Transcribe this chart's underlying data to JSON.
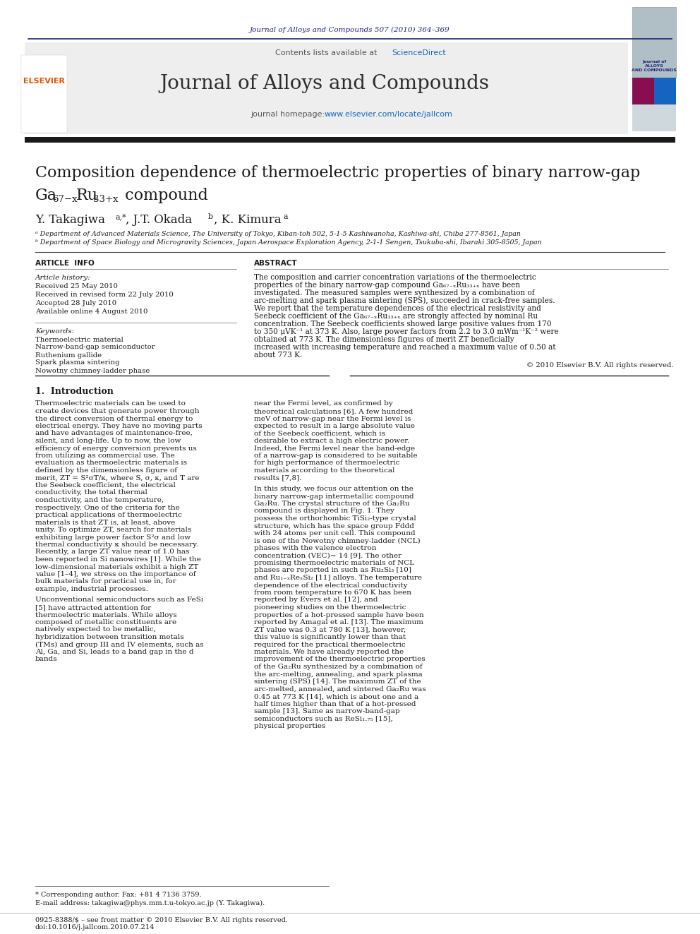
{
  "page_width": 9.92,
  "page_height": 13.23,
  "bg_color": "#ffffff",
  "top_citation": "Journal of Alloys and Compounds 507 (2010) 364–369",
  "top_citation_color": "#1a237e",
  "header_gray": "#eeeeee",
  "header_journal_title": "Journal of Alloys and Compounds",
  "sciencedirect_color": "#1565c0",
  "homepage_color": "#1565c0",
  "elsevier_logo_color": "#e65100",
  "paper_title_line1": "Composition dependence of thermoelectric properties of binary narrow-gap",
  "affil_a": "ᵃ Department of Advanced Materials Science, The University of Tokyo, Kiban-toh 502, 5-1-5 Kashiwanoha, Kashiwa-shi, Chiba 277-8561, Japan",
  "affil_b": "ᵇ Department of Space Biology and Microgravity Sciences, Japan Aerospace Exploration Agency, 2-1-1 Sengen, Tsukuba-shi, Ibaraki 305-8505, Japan",
  "article_history": [
    "Received 25 May 2010",
    "Received in revised form 22 July 2010",
    "Accepted 28 July 2010",
    "Available online 4 August 2010"
  ],
  "keywords": [
    "Thermoelectric material",
    "Narrow-band-gap semiconductor",
    "Ruthenium gallide",
    "Spark plasma sintering",
    "Nowotny chimney-ladder phase"
  ],
  "abstract_text": "The composition and carrier concentration variations of the thermoelectric properties of the binary narrow-gap compound Ga₆₇₋ₓRu₃₃₊ₓ have been investigated. The measured samples were synthesized by a combination of arc-melting and spark plasma sintering (SPS), succeeded in crack-free samples. We report that the temperature dependences of the electrical resistivity and Seebeck coefficient of the Ga₆₇₋ₓRu₃₃₊ₓ are strongly affected by nominal Ru concentration. The Seebeck coefficients showed large positive values from 170 to 350 μVK⁻¹ at 373 K. Also, large power factors from 2.2 to 3.0 mWm⁻¹K⁻² were obtained at 773 K. The dimensionless figures of merit ZT beneficially increased with increasing temperature and reached a maximum value of 0.50 at about 773 K.",
  "copyright": "© 2010 Elsevier B.V. All rights reserved.",
  "intro_col1": "Thermoelectric materials can be used to create devices that generate power through the direct conversion of thermal energy to electrical energy. They have no moving parts and have advantages of maintenance-free, silent, and long-life. Up to now, the low efficiency of energy conversion prevents us from utilizing as commercial use. The evaluation as thermoelectric materials is defined by the dimensionless figure of merit, ZT = S²σT/κ, where S, σ, κ, and T are the Seebeck coefficient, the electrical conductivity, the total thermal conductivity, and the temperature, respectively. One of the criteria for the practical applications of thermoelectric materials is that ZT is, at least, above unity. To optimize ZT, search for materials exhibiting large power factor S²σ and low thermal conductivity κ should be necessary. Recently, a large ZT value near of 1.0 has been reported in Si nanowires [1]. While the low-dimensional materials exhibit a high ZT value [1–4], we stress on the importance of bulk materials for practical use in, for example, industrial processes.",
  "intro_col1_2": "    Unconventional semiconductors such as FeSi [5] have attracted attention for thermoelectric materials. While alloys composed of metallic constituents are natively expected to be metallic, hybridization between transition metals (TMs) and group III and IV elements, such as Al, Ga, and Si, leads to a band gap in the d bands",
  "intro_col2": "near the Fermi level, as confirmed by theoretical calculations [6]. A few hundred meV of narrow-gap near the Fermi level is expected to result in a large absolute value of the Seebeck coefficient, which is desirable to extract a high electric power. Indeed, the Fermi level near the band-edge of a narrow-gap is considered to be suitable for high performance of thermoelectric materials according to the theoretical results [7,8].",
  "intro_col2_2": "    In this study, we focus our attention on the binary narrow-gap intermetallic compound Ga₂Ru. The crystal structure of the Ga₂Ru compound is displayed in Fig. 1. They possess the orthorhombic TiSi₂-type crystal structure, which has the space group Fddd with 24 atoms per unit cell. This compound is one of the Nowotny chimney-ladder (NCL) phases with the valence electron concentration (VEC)~ 14 [9]. The other promising thermoelectric materials of NCL phases are reported in such as Ru₂Si₃ [10] and Ru₁₋ₓReₓSi₂ [11] alloys. The temperature dependence of the electrical conductivity from room temperature to 670 K has been reported by Evers et al. [12], and pioneering studies on the thermoelectric properties of a hot-pressed sample have been reported by Amagal et al. [13]. The maximum ZT value was 0.3 at 780 K [13], however, this value is significantly lower than that required for the practical thermoelectric materials. We have already reported the improvement of the thermoelectric properties of the Ga₂Ru synthesized by a combination of the arc-melting, annealing, and spark plasma sintering (SPS) [14]. The maximum ZT of the arc-melted, annealed, and sintered Ga₂Ru was 0.45 at 773 K [14], which is about one and a half times higher than that of a hot-pressed sample [13]. Same as narrow-band-gap semiconductors such as ReSi₁.₇₅ [15], physical properties",
  "footnote_star": "* Corresponding author. Fax: +81 4 7136 3759.",
  "footnote_email": "E-mail address: takagiwa@phys.mm.t.u-tokyo.ac.jp (Y. Takagiwa).",
  "footer_line1": "0925-8388/$ – see front matter © 2010 Elsevier B.V. All rights reserved.",
  "footer_line2": "doi:10.1016/j.jallcom.2010.07.214",
  "dark_bar_color": "#1a1a1a"
}
